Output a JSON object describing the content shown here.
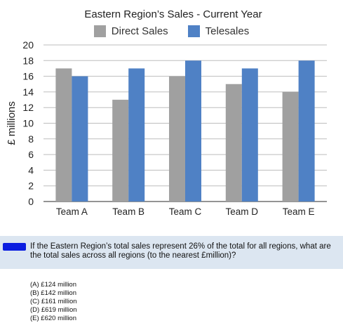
{
  "chart_data": {
    "type": "bar",
    "title": "Eastern Region’s Sales - Current Year",
    "xlabel": "",
    "ylabel": "£ millions",
    "categories": [
      "Team A",
      "Team B",
      "Team C",
      "Team D",
      "Team E"
    ],
    "series": [
      {
        "name": "Direct Sales",
        "values": [
          17,
          13,
          16,
          15,
          14
        ],
        "color": "#a0a0a0"
      },
      {
        "name": "Telesales",
        "values": [
          16,
          17,
          18,
          17,
          18
        ],
        "color": "#4f81c5"
      }
    ],
    "ylim": [
      0,
      20
    ],
    "yticks": [
      "0",
      "2",
      "4",
      "6",
      "8",
      "10",
      "12",
      "14",
      "16",
      "18",
      "20"
    ],
    "grid": true,
    "legend_position": "top-center"
  },
  "question": {
    "text": "If the Eastern Region’s total sales represent 26% of the total for all regions, what are the total sales across all regions (to the nearest £million)?",
    "options": [
      "(A) £124 million",
      "(B) £142 million",
      "(C) £161 million",
      "(D) £619 million",
      "(E) £620 million"
    ]
  }
}
